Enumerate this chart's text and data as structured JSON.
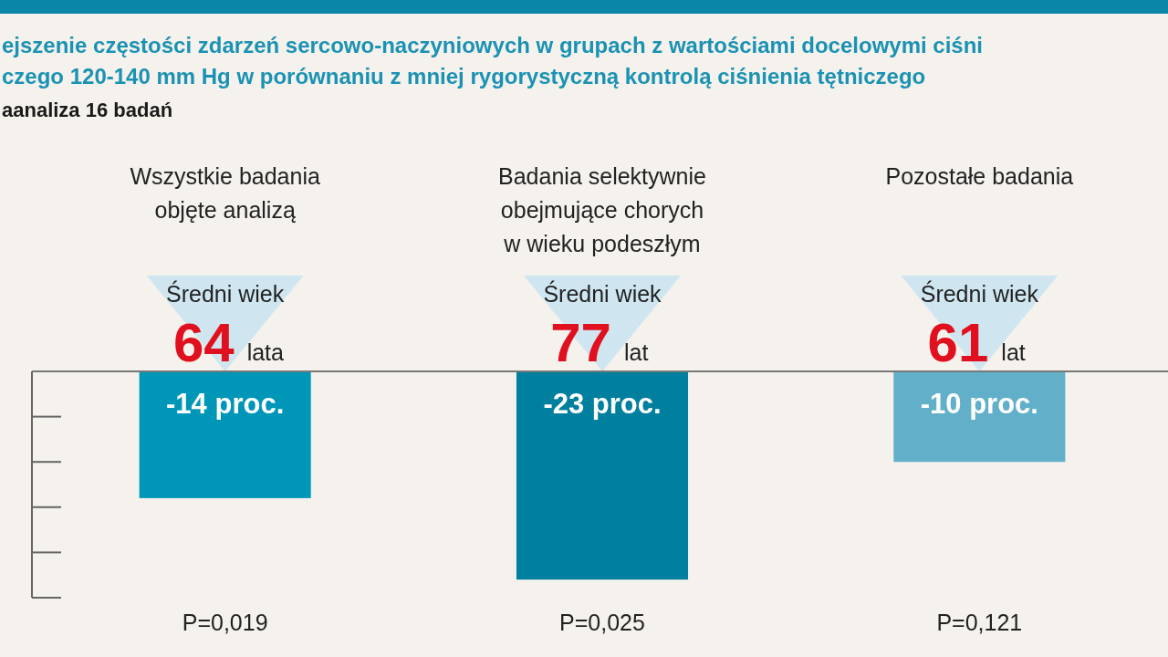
{
  "chart_data": {
    "type": "bar",
    "title": "ejszenie częstości zdarzeń sercowo-naczyniowych w grupach z wartościami docelowymi ciśni\nczego 120-140 mm Hg w porównaniu z mniej rygorystyczną kontrolą ciśnienia tętniczego",
    "subtitle": "aanaliza 16 badań",
    "categories": [
      "Wszystkie badania objęte analizą",
      "Badania selektywnie obejmujące chorych w wieku podeszłym",
      "Pozostałe badania"
    ],
    "values": [
      -14,
      -23,
      -10
    ],
    "colors": [
      "#0096b8",
      "#007f9e",
      "#62afc9"
    ],
    "value_labels": [
      "-14 proc.",
      "-23 proc.",
      "-10 proc."
    ],
    "ylim": [
      -25,
      0
    ],
    "tick_labels": "x",
    "annotations": [
      "Średni wiek",
      "64",
      "lata",
      "P=0,019",
      "Średni wiek",
      "77",
      "lat",
      "P=0,025",
      "Średni wiek",
      "61",
      "lat",
      "P=0,121"
    ]
  }
}
